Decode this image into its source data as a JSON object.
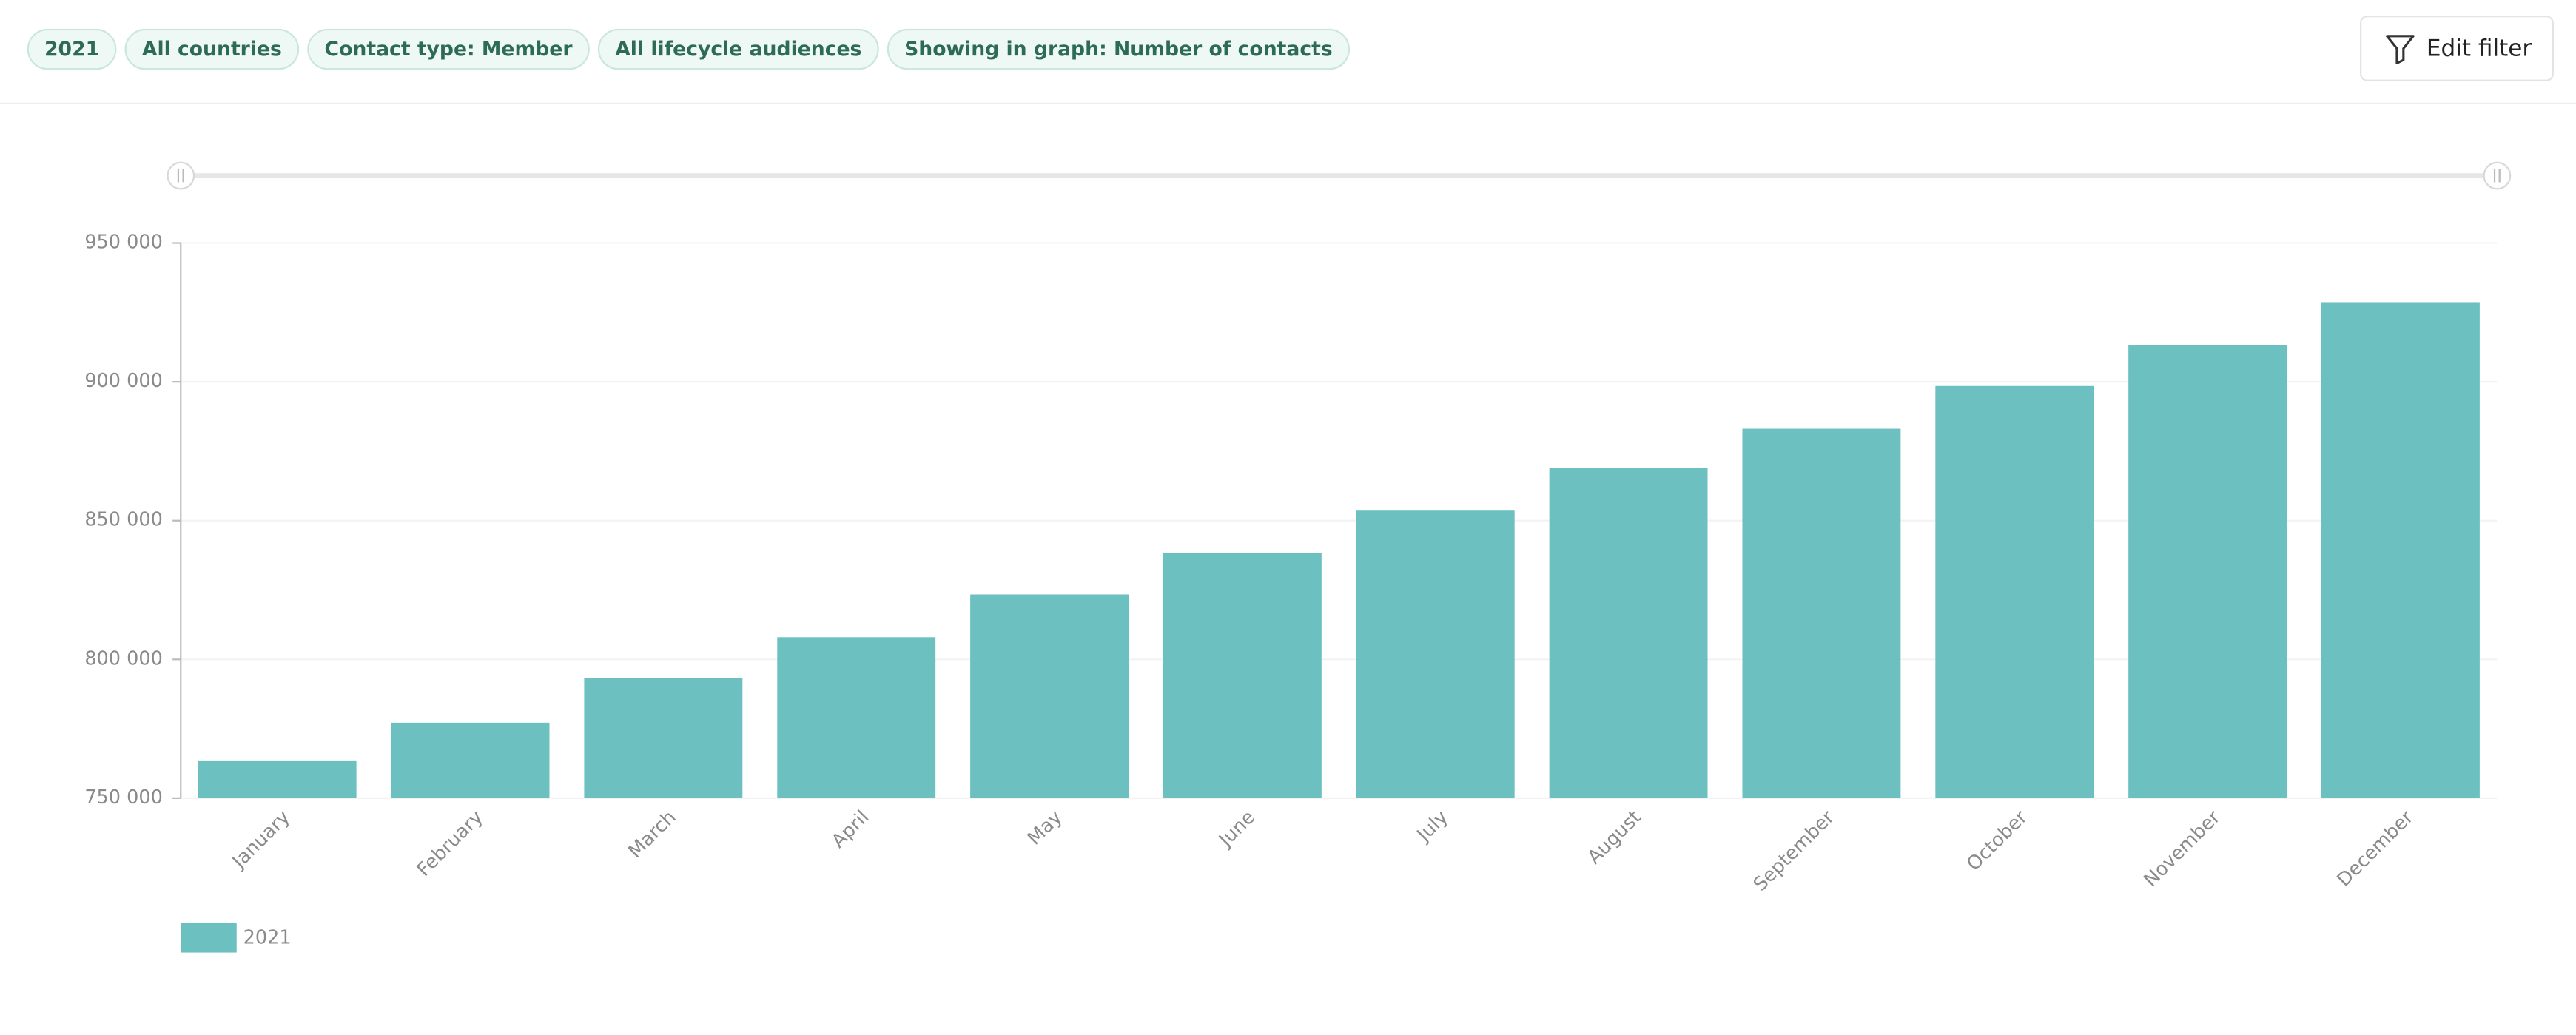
{
  "filters": [
    "2021",
    "All countries",
    "Contact type: Member",
    "All lifecycle audiences",
    "Showing in graph: Number of contacts"
  ],
  "edit_button": "Edit filter",
  "chart_data": {
    "type": "bar",
    "categories": [
      "January",
      "February",
      "March",
      "April",
      "May",
      "June",
      "July",
      "August",
      "September",
      "October",
      "November",
      "December"
    ],
    "series": [
      {
        "name": "2021",
        "color": "#6cc1c0",
        "values": [
          763600,
          777200,
          793200,
          808000,
          823400,
          838200,
          853600,
          868900,
          883100,
          898500,
          913300,
          928700
        ]
      }
    ],
    "ylim": [
      750000,
      950000
    ],
    "yticks": [
      {
        "value": 750000,
        "label": "750 000"
      },
      {
        "value": 800000,
        "label": "800 000"
      },
      {
        "value": 850000,
        "label": "850 000"
      },
      {
        "value": 900000,
        "label": "900 000"
      },
      {
        "value": 950000,
        "label": "950 000"
      }
    ],
    "grid": true
  }
}
